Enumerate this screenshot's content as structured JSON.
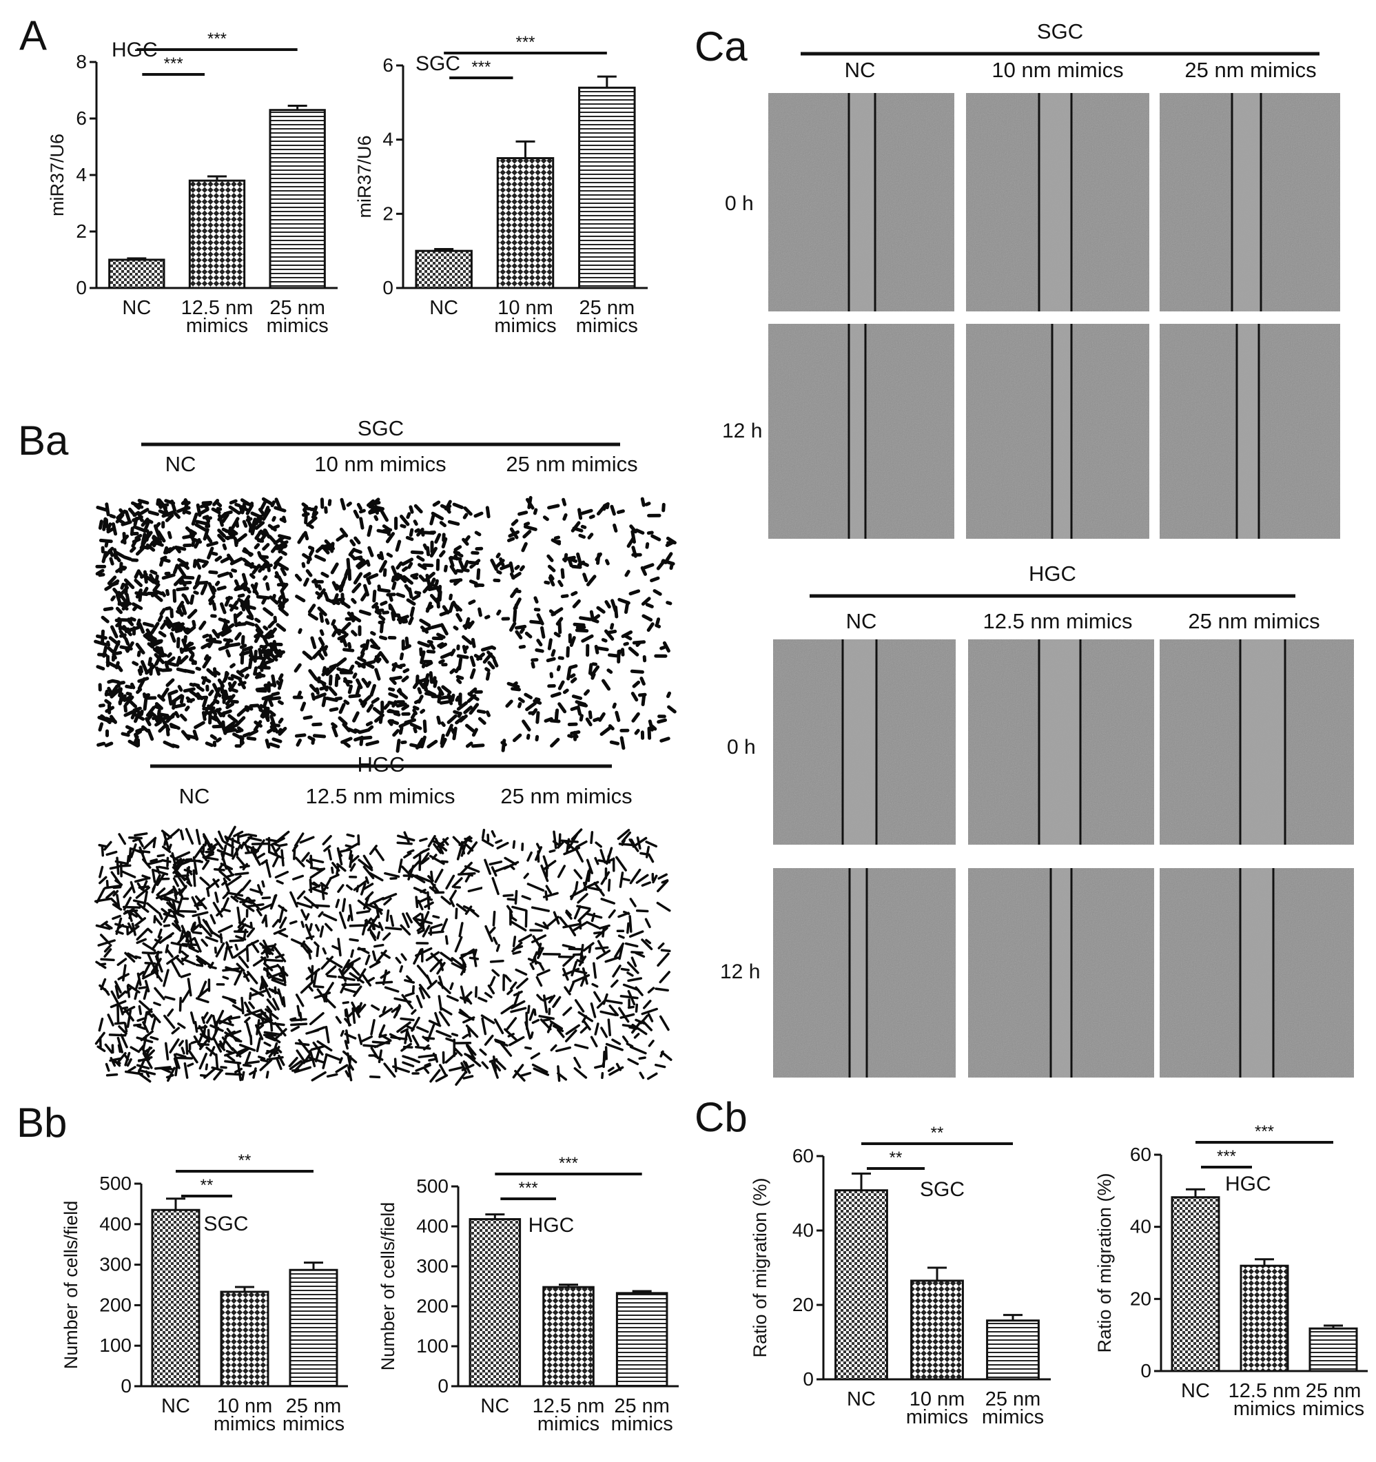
{
  "panels": {
    "A": "A",
    "Ba": "Ba",
    "Bb": "Bb",
    "Ca": "Ca",
    "Cb": "Cb"
  },
  "colors": {
    "text": "#111111",
    "bar_fill": "#ffffff",
    "image_bg": "#8f8f8f",
    "scratch_gap": "#a5a5a5"
  },
  "hatch_patterns": [
    "dense-check",
    "check",
    "horizontal-lines"
  ],
  "Ba": {
    "groups": [
      {
        "title": "SGC",
        "columns": [
          "NC",
          "10 nm mimics",
          "25 nm mimics"
        ],
        "density": [
          0.32,
          0.21,
          0.11
        ]
      },
      {
        "title": "HGC",
        "columns": [
          "NC",
          "12.5 nm mimics",
          "25 nm mimics"
        ],
        "density": [
          0.26,
          0.18,
          0.14
        ]
      }
    ]
  },
  "Ca": {
    "groups": [
      {
        "title": "SGC",
        "columns": [
          "NC",
          "10 nm mimics",
          "25 nm mimics"
        ],
        "rows": [
          "0 h",
          "12 h"
        ]
      },
      {
        "title": "HGC",
        "columns": [
          "NC",
          "12.5 nm mimics",
          "25 nm mimics"
        ],
        "rows": [
          "0 h",
          "12 h"
        ]
      }
    ]
  },
  "chart_data": [
    {
      "id": "A-HGC",
      "type": "bar",
      "title": "HGC",
      "ylabel": "miR37/U6",
      "xlabel": "",
      "ylim": [
        0,
        8
      ],
      "yticks": [
        0,
        2,
        4,
        6,
        8
      ],
      "categories": [
        "NC",
        "12.5 nm\nmimics",
        "25 nm\nmimics"
      ],
      "values": [
        1.0,
        3.8,
        6.3
      ],
      "errors": [
        0.05,
        0.15,
        0.15
      ],
      "significance": [
        {
          "from": 0,
          "to": 1,
          "label": "***"
        },
        {
          "from": 0,
          "to": 2,
          "label": "***"
        }
      ]
    },
    {
      "id": "A-SGC",
      "type": "bar",
      "title": "SGC",
      "ylabel": "miR37/U6",
      "xlabel": "",
      "ylim": [
        0,
        6
      ],
      "yticks": [
        0,
        2,
        4,
        6
      ],
      "categories": [
        "NC",
        "10 nm\nmimics",
        "25 nm\nmimics"
      ],
      "values": [
        1.0,
        3.5,
        5.4
      ],
      "errors": [
        0.05,
        0.45,
        0.3
      ],
      "significance": [
        {
          "from": 0,
          "to": 1,
          "label": "***"
        },
        {
          "from": 0,
          "to": 2,
          "label": "***"
        }
      ]
    },
    {
      "id": "Bb-SGC",
      "type": "bar",
      "title": "SGC",
      "ylabel": "Number of cells/field",
      "xlabel": "",
      "ylim": [
        0,
        500
      ],
      "yticks": [
        0,
        100,
        200,
        300,
        400,
        500
      ],
      "categories": [
        "NC",
        "10 nm\nmimics",
        "25 nm\nmimics"
      ],
      "values": [
        435,
        233,
        287
      ],
      "errors": [
        28,
        12,
        18
      ],
      "significance": [
        {
          "from": 0,
          "to": 1,
          "label": "**"
        },
        {
          "from": 0,
          "to": 2,
          "label": "**"
        }
      ]
    },
    {
      "id": "Bb-HGC",
      "type": "bar",
      "title": "HGC",
      "ylabel": "Number of cells/field",
      "xlabel": "",
      "ylim": [
        0,
        500
      ],
      "yticks": [
        0,
        100,
        200,
        300,
        400,
        500
      ],
      "categories": [
        "NC",
        "12.5 nm\nmimics",
        "25 nm\nmimics"
      ],
      "values": [
        418,
        248,
        233
      ],
      "errors": [
        12,
        6,
        5
      ],
      "significance": [
        {
          "from": 0,
          "to": 1,
          "label": "***"
        },
        {
          "from": 0,
          "to": 2,
          "label": "***"
        }
      ]
    },
    {
      "id": "Cb-SGC",
      "type": "bar",
      "title": "SGC",
      "ylabel": "Ratio of migration (%)",
      "xlabel": "",
      "ylim": [
        0,
        60
      ],
      "yticks": [
        0,
        20,
        40,
        60
      ],
      "categories": [
        "NC",
        "10 nm\nmimics",
        "25 nm\nmimics"
      ],
      "values": [
        50.8,
        26.5,
        15.8
      ],
      "errors": [
        4.5,
        3.5,
        1.5
      ],
      "significance": [
        {
          "from": 0,
          "to": 1,
          "label": "**"
        },
        {
          "from": 0,
          "to": 2,
          "label": "**"
        }
      ]
    },
    {
      "id": "Cb-HGC",
      "type": "bar",
      "title": "HGC",
      "ylabel": "Ratio of migration (%)",
      "xlabel": "",
      "ylim": [
        0,
        60
      ],
      "yticks": [
        0,
        20,
        40,
        60
      ],
      "categories": [
        "NC",
        "12.5 nm\nmimics",
        "25 nm\nmimics"
      ],
      "values": [
        48.2,
        29.2,
        11.8
      ],
      "errors": [
        2.2,
        1.8,
        0.8
      ],
      "significance": [
        {
          "from": 0,
          "to": 1,
          "label": "***"
        },
        {
          "from": 0,
          "to": 2,
          "label": "***"
        }
      ]
    }
  ]
}
